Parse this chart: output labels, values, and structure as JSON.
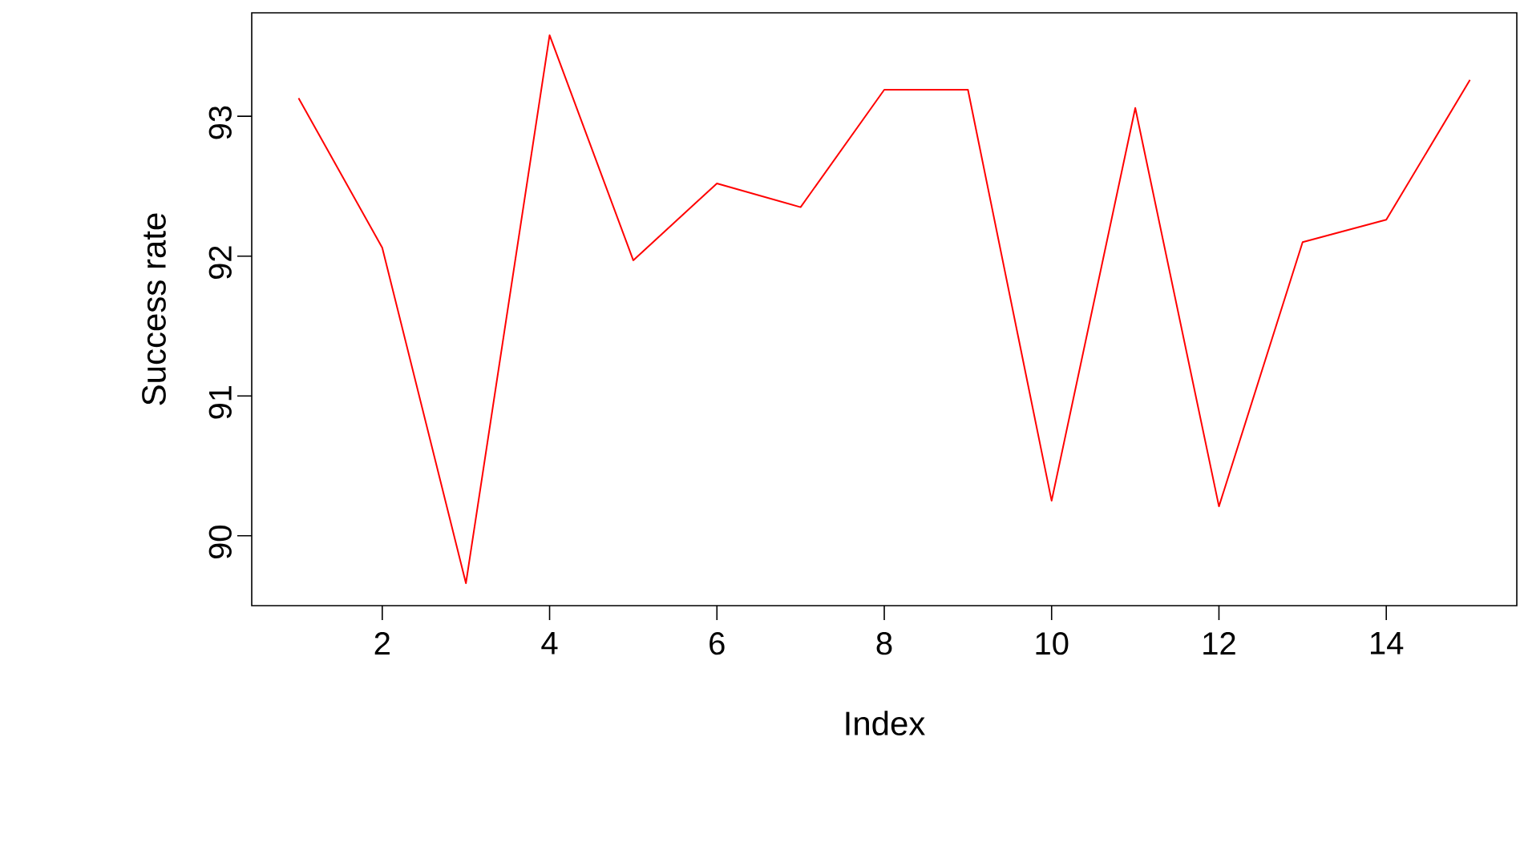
{
  "chart_data": {
    "type": "line",
    "xlabel": "Index",
    "ylabel": "Success rate",
    "x": [
      1,
      2,
      3,
      4,
      5,
      6,
      7,
      8,
      9,
      10,
      11,
      12,
      13,
      14,
      15
    ],
    "series": [
      {
        "color": "#ff0000",
        "values": [
          93.13,
          92.06,
          89.66,
          93.58,
          91.97,
          92.52,
          92.35,
          93.19,
          93.19,
          90.25,
          93.06,
          90.21,
          92.1,
          92.26,
          93.26
        ]
      }
    ],
    "xlim": [
      0.44,
      15.56
    ],
    "ylim": [
      89.5,
      93.74
    ],
    "xticks": [
      2,
      4,
      6,
      8,
      10,
      12,
      14
    ],
    "yticks": [
      90,
      91,
      92,
      93
    ],
    "marker": "none",
    "line_style": "solid"
  }
}
